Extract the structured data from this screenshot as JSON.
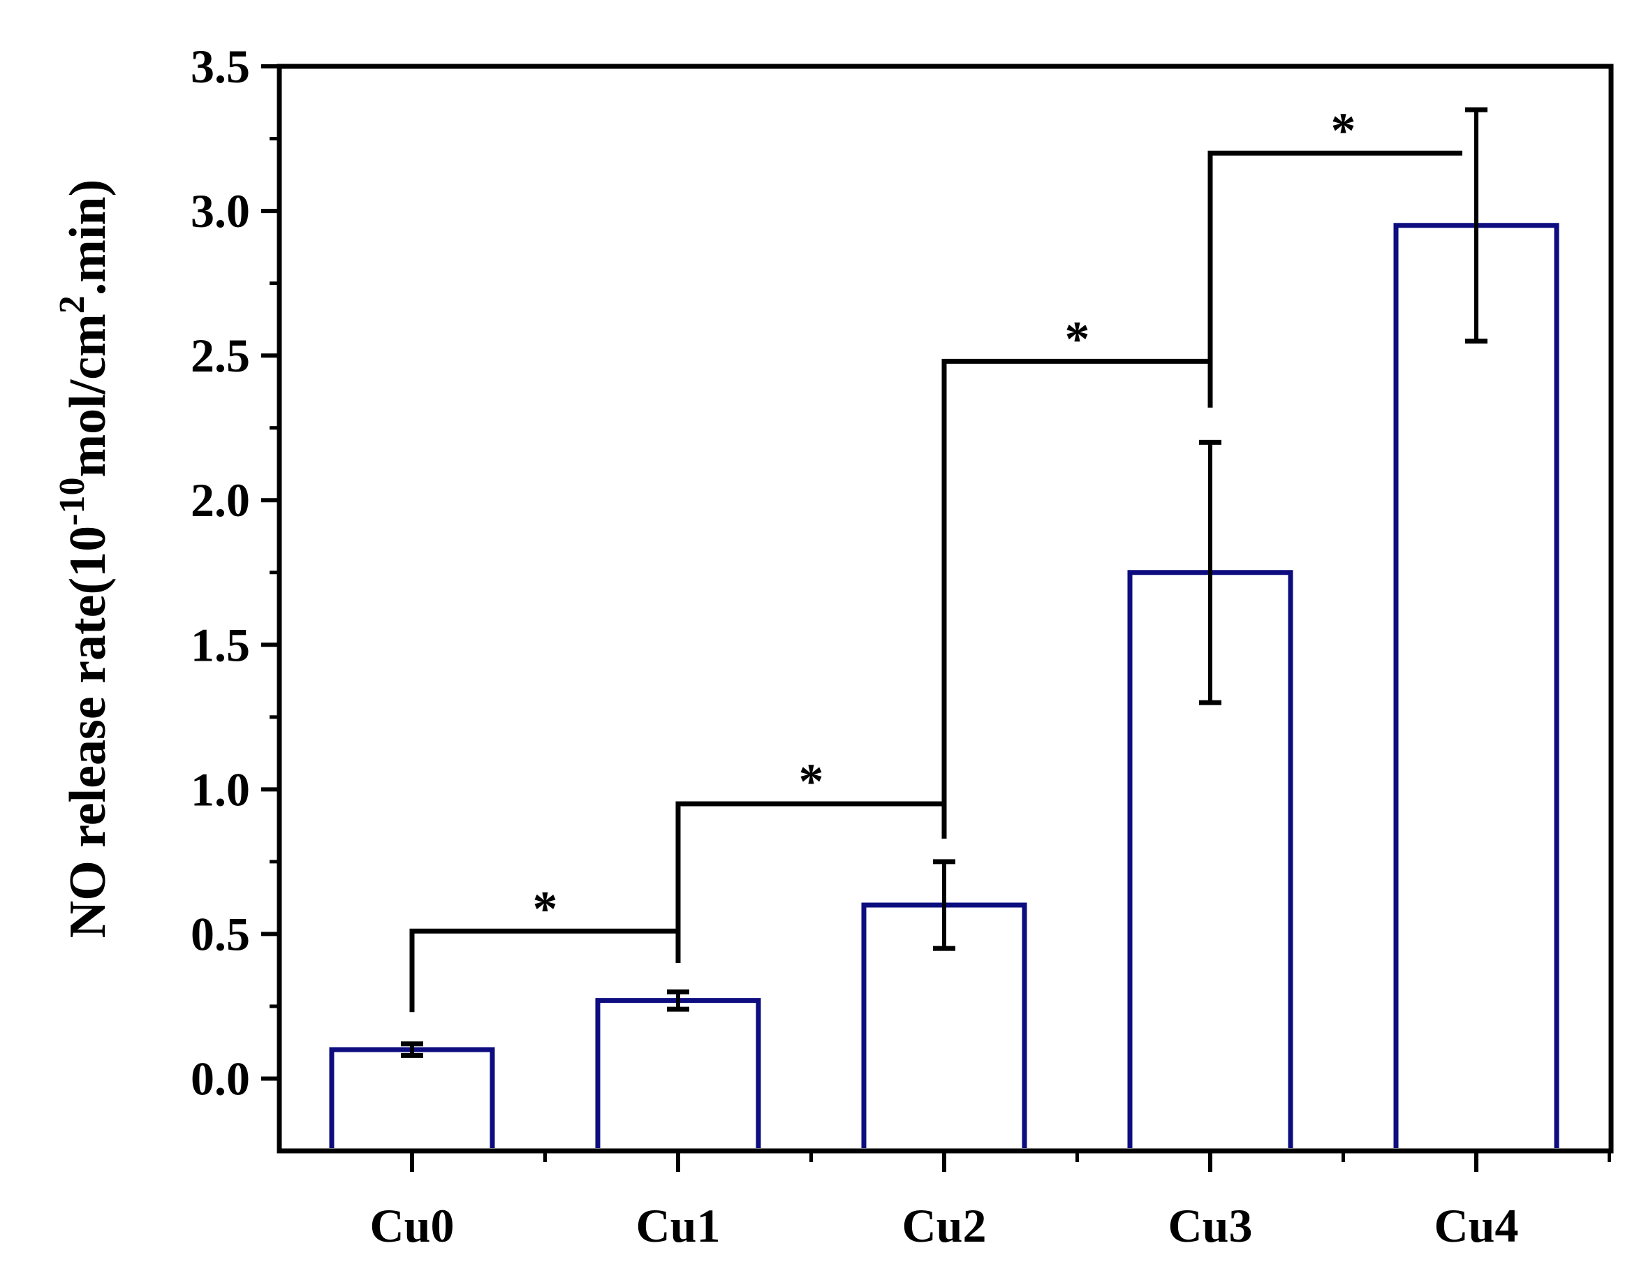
{
  "chart_data": {
    "type": "bar",
    "title": "",
    "xlabel": "",
    "ylabel": {
      "prefix": "NO release rate(10",
      "exp": "-10",
      "middle": "mol/cm",
      "exp2": "2",
      "suffix": ".min)"
    },
    "categories": [
      "Cu0",
      "Cu1",
      "Cu2",
      "Cu3",
      "Cu4"
    ],
    "values": [
      0.1,
      0.27,
      0.6,
      1.75,
      2.95
    ],
    "errors": [
      0.02,
      0.03,
      0.15,
      0.45,
      0.4
    ],
    "ylim": [
      -0.25,
      3.5
    ],
    "yticks": [
      0.0,
      0.5,
      1.0,
      1.5,
      2.0,
      2.5,
      3.0,
      3.5
    ],
    "ytick_labels": [
      "0.0",
      "0.5",
      "1.0",
      "1.5",
      "2.0",
      "2.5",
      "3.0",
      "3.5"
    ],
    "bar_fill": "#ffffff",
    "bar_edge_color": "#0d0d80",
    "error_color": "#000000",
    "significance": [
      {
        "from": 0,
        "to": 1,
        "level": 0.51,
        "left_drop_to": 0.23,
        "right_drop_to": 0.4,
        "label": "*"
      },
      {
        "from": 1,
        "to": 2,
        "level": 0.95,
        "left_drop_to": 0.4,
        "right_drop_to": 0.83,
        "label": "*"
      },
      {
        "from": 2,
        "to": 3,
        "level": 2.48,
        "left_drop_to": 0.83,
        "right_drop_to": 2.32,
        "label": "*"
      },
      {
        "from": 3,
        "to": 4,
        "level": 3.2,
        "left_drop_to": 2.32,
        "right_drop_to": null,
        "label": "*"
      }
    ]
  }
}
